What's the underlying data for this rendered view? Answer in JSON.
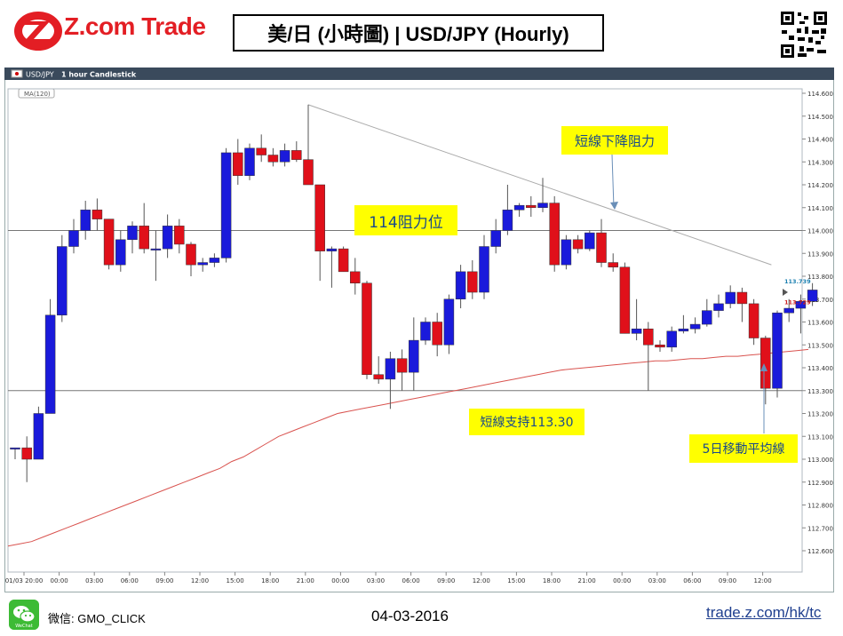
{
  "header": {
    "logo_text": "Z.com Trade",
    "title": "美/日 (小時圖) | USD/JPY (Hourly)"
  },
  "toolbar": {
    "symbol": "USD/JPY",
    "timeframe": "1 hour",
    "chart_style": "Candlestick",
    "indicator": "MA(120)"
  },
  "colors": {
    "up": "#1a1adb",
    "down": "#e0101a",
    "ma": "#d9534f",
    "trendline": "#aaaaaa",
    "note_bg": "#ffff00",
    "note_text": "#1a4a8a"
  },
  "annotations": {
    "resistance_114": "114阻力位",
    "downtrend_resistance": "短線下降阻力",
    "support": "短線支持113.30",
    "ma_label": "5日移動平均線"
  },
  "chart_data": {
    "type": "candlestick",
    "ylim": [
      112.6,
      114.6
    ],
    "y_ticks": [
      "114.600",
      "114.500",
      "114.400",
      "114.300",
      "114.200",
      "114.100",
      "114.000",
      "113.900",
      "113.800",
      "113.700",
      "113.600",
      "113.500",
      "113.400",
      "113.300",
      "113.200",
      "113.100",
      "113.000",
      "112.900",
      "112.800",
      "112.700",
      "112.600"
    ],
    "x_ticks": [
      "01/03 20:00",
      "00:00",
      "03:00",
      "06:00",
      "09:00",
      "12:00",
      "15:00",
      "18:00",
      "21:00",
      "00:00",
      "03:00",
      "06:00",
      "09:00",
      "12:00",
      "15:00",
      "18:00",
      "21:00",
      "00:00",
      "03:00",
      "06:00",
      "09:00",
      "12:00"
    ],
    "price_labels": {
      "bid": "113.739",
      "ask": "113.729"
    },
    "horizontal_lines": [
      114.0,
      113.3
    ],
    "trendline": {
      "start": [
        0,
        114.55
      ],
      "end": [
        64.5,
        113.85
      ]
    },
    "candles": [
      [
        113.05,
        113.05,
        113.0,
        113.05
      ],
      [
        113.05,
        113.1,
        112.9,
        113.0
      ],
      [
        113.0,
        113.23,
        113.0,
        113.2
      ],
      [
        113.2,
        113.7,
        113.2,
        113.63
      ],
      [
        113.63,
        113.98,
        113.6,
        113.93
      ],
      [
        113.93,
        114.05,
        113.9,
        114.0
      ],
      [
        114.0,
        114.13,
        113.96,
        114.09
      ],
      [
        114.09,
        114.14,
        114.0,
        114.05
      ],
      [
        114.05,
        114.05,
        113.83,
        113.85
      ],
      [
        113.85,
        114.0,
        113.82,
        113.96
      ],
      [
        113.96,
        114.04,
        113.9,
        114.02
      ],
      [
        114.02,
        114.12,
        113.9,
        113.92
      ],
      [
        113.92,
        114.0,
        113.78,
        113.92
      ],
      [
        113.92,
        114.07,
        113.88,
        114.02
      ],
      [
        114.02,
        114.05,
        113.9,
        113.94
      ],
      [
        113.94,
        113.95,
        113.8,
        113.85
      ],
      [
        113.85,
        113.88,
        113.82,
        113.86
      ],
      [
        113.86,
        113.9,
        113.84,
        113.88
      ],
      [
        113.88,
        114.36,
        113.86,
        114.34
      ],
      [
        114.34,
        114.4,
        114.2,
        114.24
      ],
      [
        114.24,
        114.38,
        114.22,
        114.36
      ],
      [
        114.36,
        114.42,
        114.3,
        114.33
      ],
      [
        114.33,
        114.36,
        114.28,
        114.3
      ],
      [
        114.3,
        114.38,
        114.28,
        114.35
      ],
      [
        114.35,
        114.39,
        114.3,
        114.31
      ],
      [
        114.31,
        114.55,
        114.2,
        114.2
      ],
      [
        114.2,
        114.2,
        113.78,
        113.91
      ],
      [
        113.91,
        113.93,
        113.75,
        113.92
      ],
      [
        113.92,
        113.93,
        113.82,
        113.82
      ],
      [
        113.82,
        113.88,
        113.72,
        113.77
      ],
      [
        113.77,
        113.78,
        113.35,
        113.37
      ],
      [
        113.37,
        113.45,
        113.33,
        113.35
      ],
      [
        113.35,
        113.47,
        113.22,
        113.44
      ],
      [
        113.44,
        113.48,
        113.3,
        113.38
      ],
      [
        113.38,
        113.62,
        113.3,
        113.52
      ],
      [
        113.52,
        113.62,
        113.5,
        113.6
      ],
      [
        113.6,
        113.64,
        113.45,
        113.5
      ],
      [
        113.5,
        113.72,
        113.46,
        113.7
      ],
      [
        113.7,
        113.85,
        113.66,
        113.82
      ],
      [
        113.82,
        113.87,
        113.7,
        113.73
      ],
      [
        113.73,
        113.98,
        113.7,
        113.93
      ],
      [
        113.93,
        114.05,
        113.9,
        114.0
      ],
      [
        114.0,
        114.2,
        113.98,
        114.09
      ],
      [
        114.09,
        114.12,
        114.06,
        114.11
      ],
      [
        114.11,
        114.15,
        114.06,
        114.1
      ],
      [
        114.1,
        114.23,
        114.08,
        114.12
      ],
      [
        114.12,
        114.15,
        113.82,
        113.85
      ],
      [
        113.85,
        113.98,
        113.83,
        113.96
      ],
      [
        113.96,
        113.98,
        113.9,
        113.92
      ],
      [
        113.92,
        114.0,
        113.91,
        113.99
      ],
      [
        113.99,
        114.05,
        113.84,
        113.86
      ],
      [
        113.86,
        113.9,
        113.82,
        113.84
      ],
      [
        113.84,
        113.86,
        113.55,
        113.55
      ],
      [
        113.55,
        113.7,
        113.52,
        113.57
      ],
      [
        113.57,
        113.6,
        113.3,
        113.5
      ],
      [
        113.5,
        113.52,
        113.47,
        113.49
      ],
      [
        113.49,
        113.58,
        113.47,
        113.56
      ],
      [
        113.56,
        113.63,
        113.55,
        113.57
      ],
      [
        113.57,
        113.62,
        113.55,
        113.59
      ],
      [
        113.59,
        113.7,
        113.58,
        113.65
      ],
      [
        113.65,
        113.72,
        113.62,
        113.68
      ],
      [
        113.68,
        113.76,
        113.66,
        113.73
      ],
      [
        113.73,
        113.75,
        113.6,
        113.68
      ],
      [
        113.68,
        113.7,
        113.5,
        113.53
      ],
      [
        113.53,
        113.54,
        113.24,
        113.31
      ],
      [
        113.31,
        113.65,
        113.27,
        113.64
      ],
      [
        113.64,
        113.7,
        113.6,
        113.66
      ],
      [
        113.66,
        113.72,
        113.55,
        113.69
      ],
      [
        113.69,
        113.77,
        113.67,
        113.74
      ]
    ],
    "ma_series": [
      112.62,
      112.63,
      112.64,
      112.66,
      112.68,
      112.7,
      112.72,
      112.74,
      112.76,
      112.78,
      112.8,
      112.82,
      112.84,
      112.86,
      112.88,
      112.9,
      112.92,
      112.94,
      112.96,
      112.99,
      113.01,
      113.04,
      113.07,
      113.1,
      113.12,
      113.14,
      113.16,
      113.18,
      113.2,
      113.21,
      113.22,
      113.23,
      113.24,
      113.25,
      113.26,
      113.27,
      113.28,
      113.29,
      113.3,
      113.31,
      113.32,
      113.33,
      113.34,
      113.35,
      113.36,
      113.37,
      113.38,
      113.39,
      113.395,
      113.4,
      113.405,
      113.41,
      113.415,
      113.42,
      113.425,
      113.43,
      113.43,
      113.435,
      113.44,
      113.44,
      113.445,
      113.45,
      113.45,
      113.455,
      113.46,
      113.465,
      113.47,
      113.475,
      113.48
    ]
  },
  "footer": {
    "wechat_label": "微信: GMO_CLICK",
    "date": "04-03-2016",
    "url": "trade.z.com/hk/tc"
  }
}
